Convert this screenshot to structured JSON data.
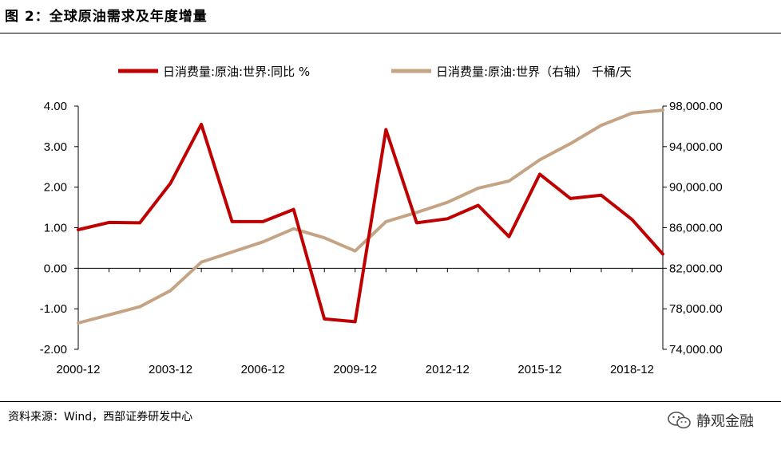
{
  "header": {
    "title": "图 2：全球原油需求及年度增量"
  },
  "footer": {
    "source": "资料来源：Wind，西部证券研发中心",
    "watermark": "静观金融"
  },
  "colors": {
    "series_red": "#C00000",
    "series_tan": "#C4A484",
    "axis": "#000000"
  },
  "chart_data": {
    "type": "line",
    "x": [
      "2000-12",
      "2001-12",
      "2002-12",
      "2003-12",
      "2004-12",
      "2005-12",
      "2006-12",
      "2007-12",
      "2008-12",
      "2009-12",
      "2010-12",
      "2011-12",
      "2012-12",
      "2013-12",
      "2014-12",
      "2015-12",
      "2016-12",
      "2017-12",
      "2018-12",
      "2019-12"
    ],
    "x_tick_labels": [
      "2000-12",
      "2003-12",
      "2006-12",
      "2009-12",
      "2012-12",
      "2015-12",
      "2018-12"
    ],
    "y_left": {
      "ylim": [
        -2.0,
        4.0
      ],
      "ticks": [
        "4.00",
        "3.00",
        "2.00",
        "1.00",
        "0.00",
        "-1.00",
        "-2.00"
      ]
    },
    "y_right": {
      "ylim": [
        74000,
        98000
      ],
      "ticks": [
        "98,000.00",
        "94,000.00",
        "90,000.00",
        "86,000.00",
        "82,000.00",
        "78,000.00",
        "74,000.00"
      ]
    },
    "series": [
      {
        "name": "日消费量:原油:世界:同比 %",
        "axis": "left",
        "color": "#C00000",
        "values": [
          0.95,
          1.13,
          1.12,
          2.1,
          3.55,
          1.15,
          1.15,
          1.45,
          -1.25,
          -1.32,
          3.42,
          1.12,
          1.22,
          1.55,
          0.78,
          2.32,
          1.72,
          1.8,
          1.2,
          0.35
        ]
      },
      {
        "name": "日消费量:原油:世界（右轴） 千桶/天",
        "axis": "right",
        "color": "#C4A484",
        "values": [
          76600,
          77400,
          78200,
          79800,
          82600,
          83600,
          84600,
          85900,
          85000,
          83700,
          86600,
          87500,
          88500,
          89900,
          90600,
          92700,
          94300,
          96100,
          97300,
          97600
        ]
      }
    ],
    "grid": false,
    "legend": "top"
  }
}
